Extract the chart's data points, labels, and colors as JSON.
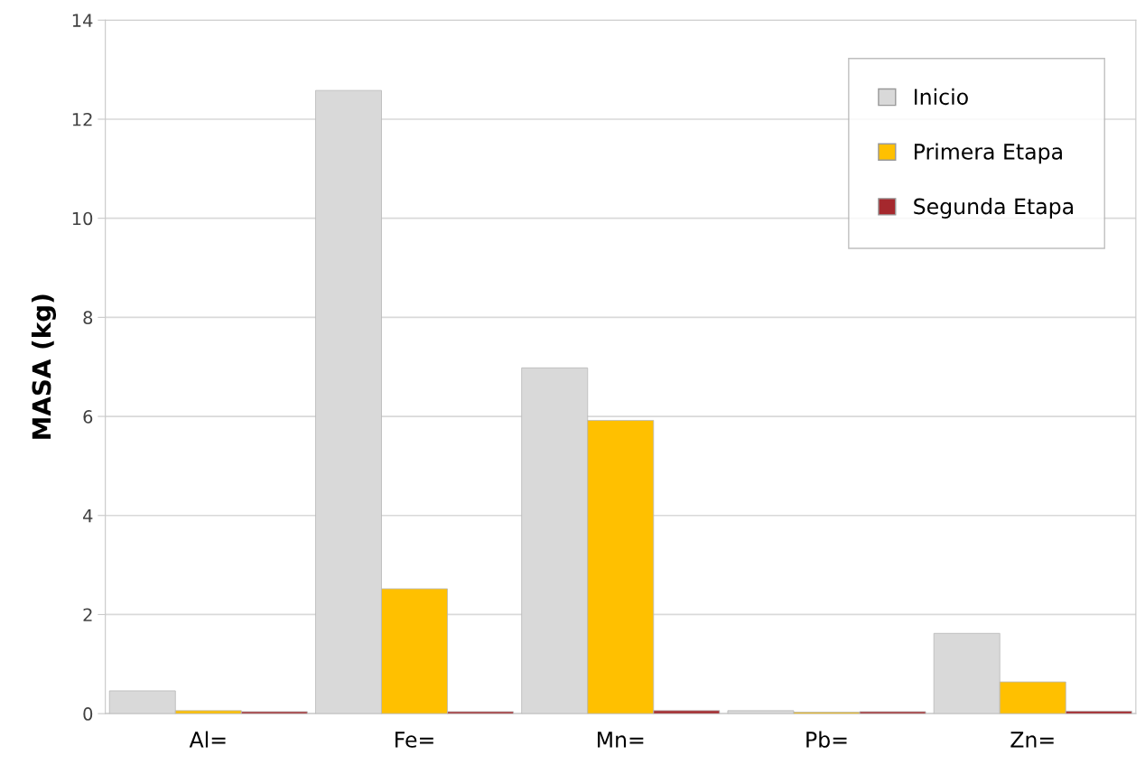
{
  "chart_data": {
    "type": "bar",
    "ylabel": "MASA (kg)",
    "categories": [
      "Al=",
      "Fe=",
      "Mn=",
      "Pb=",
      "Zn="
    ],
    "series": [
      {
        "name": "Inicio",
        "color": "#d9d9d9",
        "values": [
          0.46,
          12.58,
          6.98,
          0.06,
          1.62
        ]
      },
      {
        "name": "Primera Etapa",
        "color": "#ffc000",
        "values": [
          0.06,
          2.52,
          5.92,
          0.03,
          0.64
        ]
      },
      {
        "name": "Segunda Etapa",
        "color": "#a5282d",
        "values": [
          0.04,
          0.04,
          0.06,
          0.04,
          0.05
        ]
      }
    ],
    "ylim": [
      0,
      14
    ],
    "yticks": [
      0,
      2,
      4,
      6,
      8,
      10,
      12,
      14
    ],
    "grid": "y",
    "legend": "top right"
  }
}
